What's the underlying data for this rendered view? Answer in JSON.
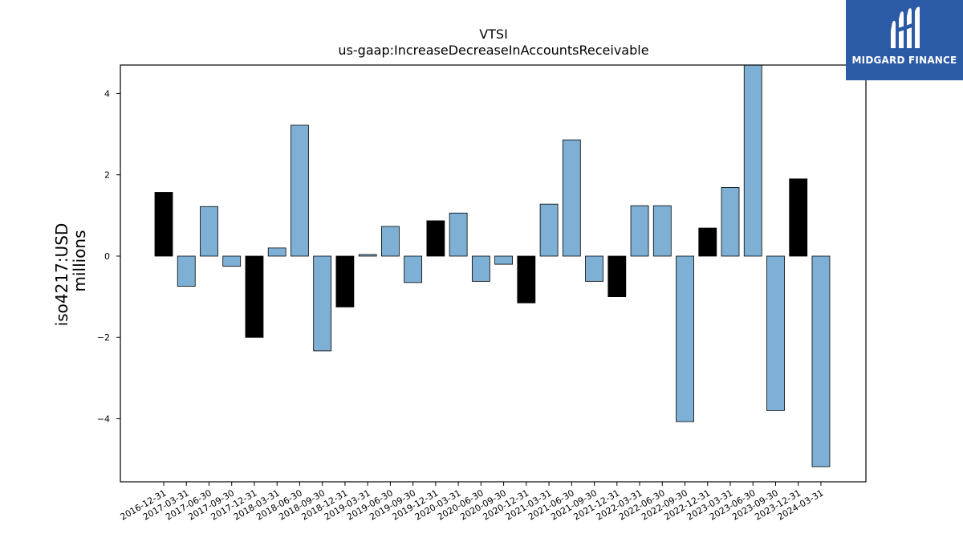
{
  "chart_data": {
    "type": "bar",
    "title": "VTSI",
    "subtitle": "us-gaap:IncreaseDecreaseInAccountsReceivable",
    "ylabel_line1": "iso4217:USD",
    "ylabel_line2": "millions",
    "xlabel": "",
    "ylim": [
      -5.55,
      4.7
    ],
    "yticks": [
      -4,
      -2,
      0,
      2,
      4
    ],
    "grid": false,
    "categories": [
      "2016-12-31",
      "2017-03-31",
      "2017-06-30",
      "2017-09-30",
      "2017-12-31",
      "2018-03-31",
      "2018-06-30",
      "2018-09-30",
      "2018-12-31",
      "2019-03-31",
      "2019-06-30",
      "2019-09-30",
      "2019-12-31",
      "2020-03-31",
      "2020-06-30",
      "2020-09-30",
      "2020-12-31",
      "2021-03-31",
      "2021-06-30",
      "2021-09-30",
      "2021-12-31",
      "2022-03-31",
      "2022-06-30",
      "2022-09-30",
      "2022-12-31",
      "2023-03-31",
      "2023-06-30",
      "2023-09-30",
      "2023-12-31",
      "2024-03-31"
    ],
    "values": [
      1.57,
      -0.74,
      1.22,
      -0.25,
      -2.0,
      0.2,
      3.22,
      -2.33,
      -1.25,
      0.04,
      0.73,
      -0.65,
      0.87,
      1.06,
      -0.62,
      -0.2,
      -1.15,
      1.28,
      2.86,
      -0.62,
      -1.0,
      1.24,
      1.24,
      -4.07,
      0.69,
      1.69,
      4.7,
      -3.8,
      1.9,
      -5.18
    ],
    "bar_types": [
      "annual",
      "quarterly",
      "quarterly",
      "quarterly",
      "annual",
      "quarterly",
      "quarterly",
      "quarterly",
      "annual",
      "quarterly",
      "quarterly",
      "quarterly",
      "annual",
      "quarterly",
      "quarterly",
      "quarterly",
      "annual",
      "quarterly",
      "quarterly",
      "quarterly",
      "annual",
      "quarterly",
      "quarterly",
      "quarterly",
      "annual",
      "quarterly",
      "quarterly",
      "quarterly",
      "annual",
      "quarterly"
    ],
    "colors": {
      "annual": "#000000",
      "quarterly": "#7eb0d5",
      "edge": "#000000"
    }
  },
  "logo": {
    "text": "MIDGARD FINANCE",
    "background": "#2b5aa6",
    "icon": "midgard-logo-icon"
  }
}
